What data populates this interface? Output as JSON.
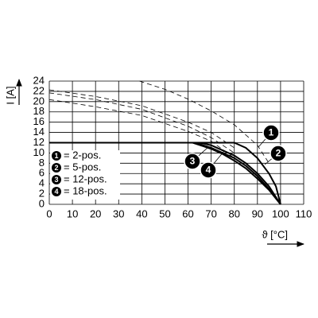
{
  "chart_data": {
    "type": "line",
    "x_label": "ϑ [°C]",
    "y_label": "I [A]",
    "xlim": [
      0,
      110
    ],
    "ylim": [
      0,
      24
    ],
    "xticks": [
      0,
      10,
      20,
      30,
      40,
      50,
      60,
      70,
      80,
      90,
      100,
      110
    ],
    "yticks": [
      0,
      2,
      4,
      6,
      8,
      10,
      12,
      14,
      16,
      18,
      20,
      22,
      24
    ],
    "grid": true,
    "series": [
      {
        "label": "1",
        "name": "= 2-pos.",
        "color": "#000000",
        "x": [
          0,
          80,
          85,
          90,
          95,
          98,
          100
        ],
        "values": [
          12,
          12,
          11,
          9,
          6,
          3.5,
          0
        ]
      },
      {
        "label": "2",
        "name": "= 5-pos.",
        "color": "#000000",
        "x": [
          0,
          65,
          70,
          75,
          80,
          85,
          90,
          95,
          100
        ],
        "values": [
          12,
          12,
          11.5,
          10.5,
          9.5,
          8,
          6,
          3.5,
          0
        ]
      },
      {
        "label": "3",
        "name": "= 12-pos.",
        "color": "#000000",
        "x": [
          0,
          63,
          70,
          75,
          80,
          85,
          90,
          95,
          100
        ],
        "values": [
          12,
          12,
          11,
          10,
          9,
          7.5,
          5.5,
          3,
          0
        ]
      },
      {
        "label": "4",
        "name": "= 18-pos.",
        "color": "#000000",
        "x": [
          0,
          62,
          70,
          75,
          80,
          85,
          90,
          95,
          100
        ],
        "values": [
          12,
          12,
          10.8,
          9.8,
          8.5,
          7,
          5,
          2.8,
          0
        ]
      },
      {
        "dashed": true,
        "color": "#000000",
        "x": [
          39,
          50,
          60,
          70,
          80,
          90,
          95
        ],
        "values": [
          24,
          22.4,
          20.5,
          18.2,
          15.5,
          11.5,
          8
        ]
      },
      {
        "dashed": true,
        "color": "#000000",
        "x": [
          0,
          20,
          40,
          60,
          70,
          80
        ],
        "values": [
          22.3,
          21,
          19.2,
          16,
          14,
          11
        ]
      },
      {
        "dashed": true,
        "color": "#000000",
        "x": [
          0,
          20,
          40,
          60,
          70,
          80
        ],
        "values": [
          21.7,
          20.4,
          18.5,
          15.2,
          13,
          10
        ]
      },
      {
        "dashed": true,
        "color": "#000000",
        "x": [
          0,
          20,
          40,
          60,
          70,
          80
        ],
        "values": [
          20.4,
          19,
          17.3,
          14.2,
          12.3,
          9
        ]
      }
    ]
  }
}
